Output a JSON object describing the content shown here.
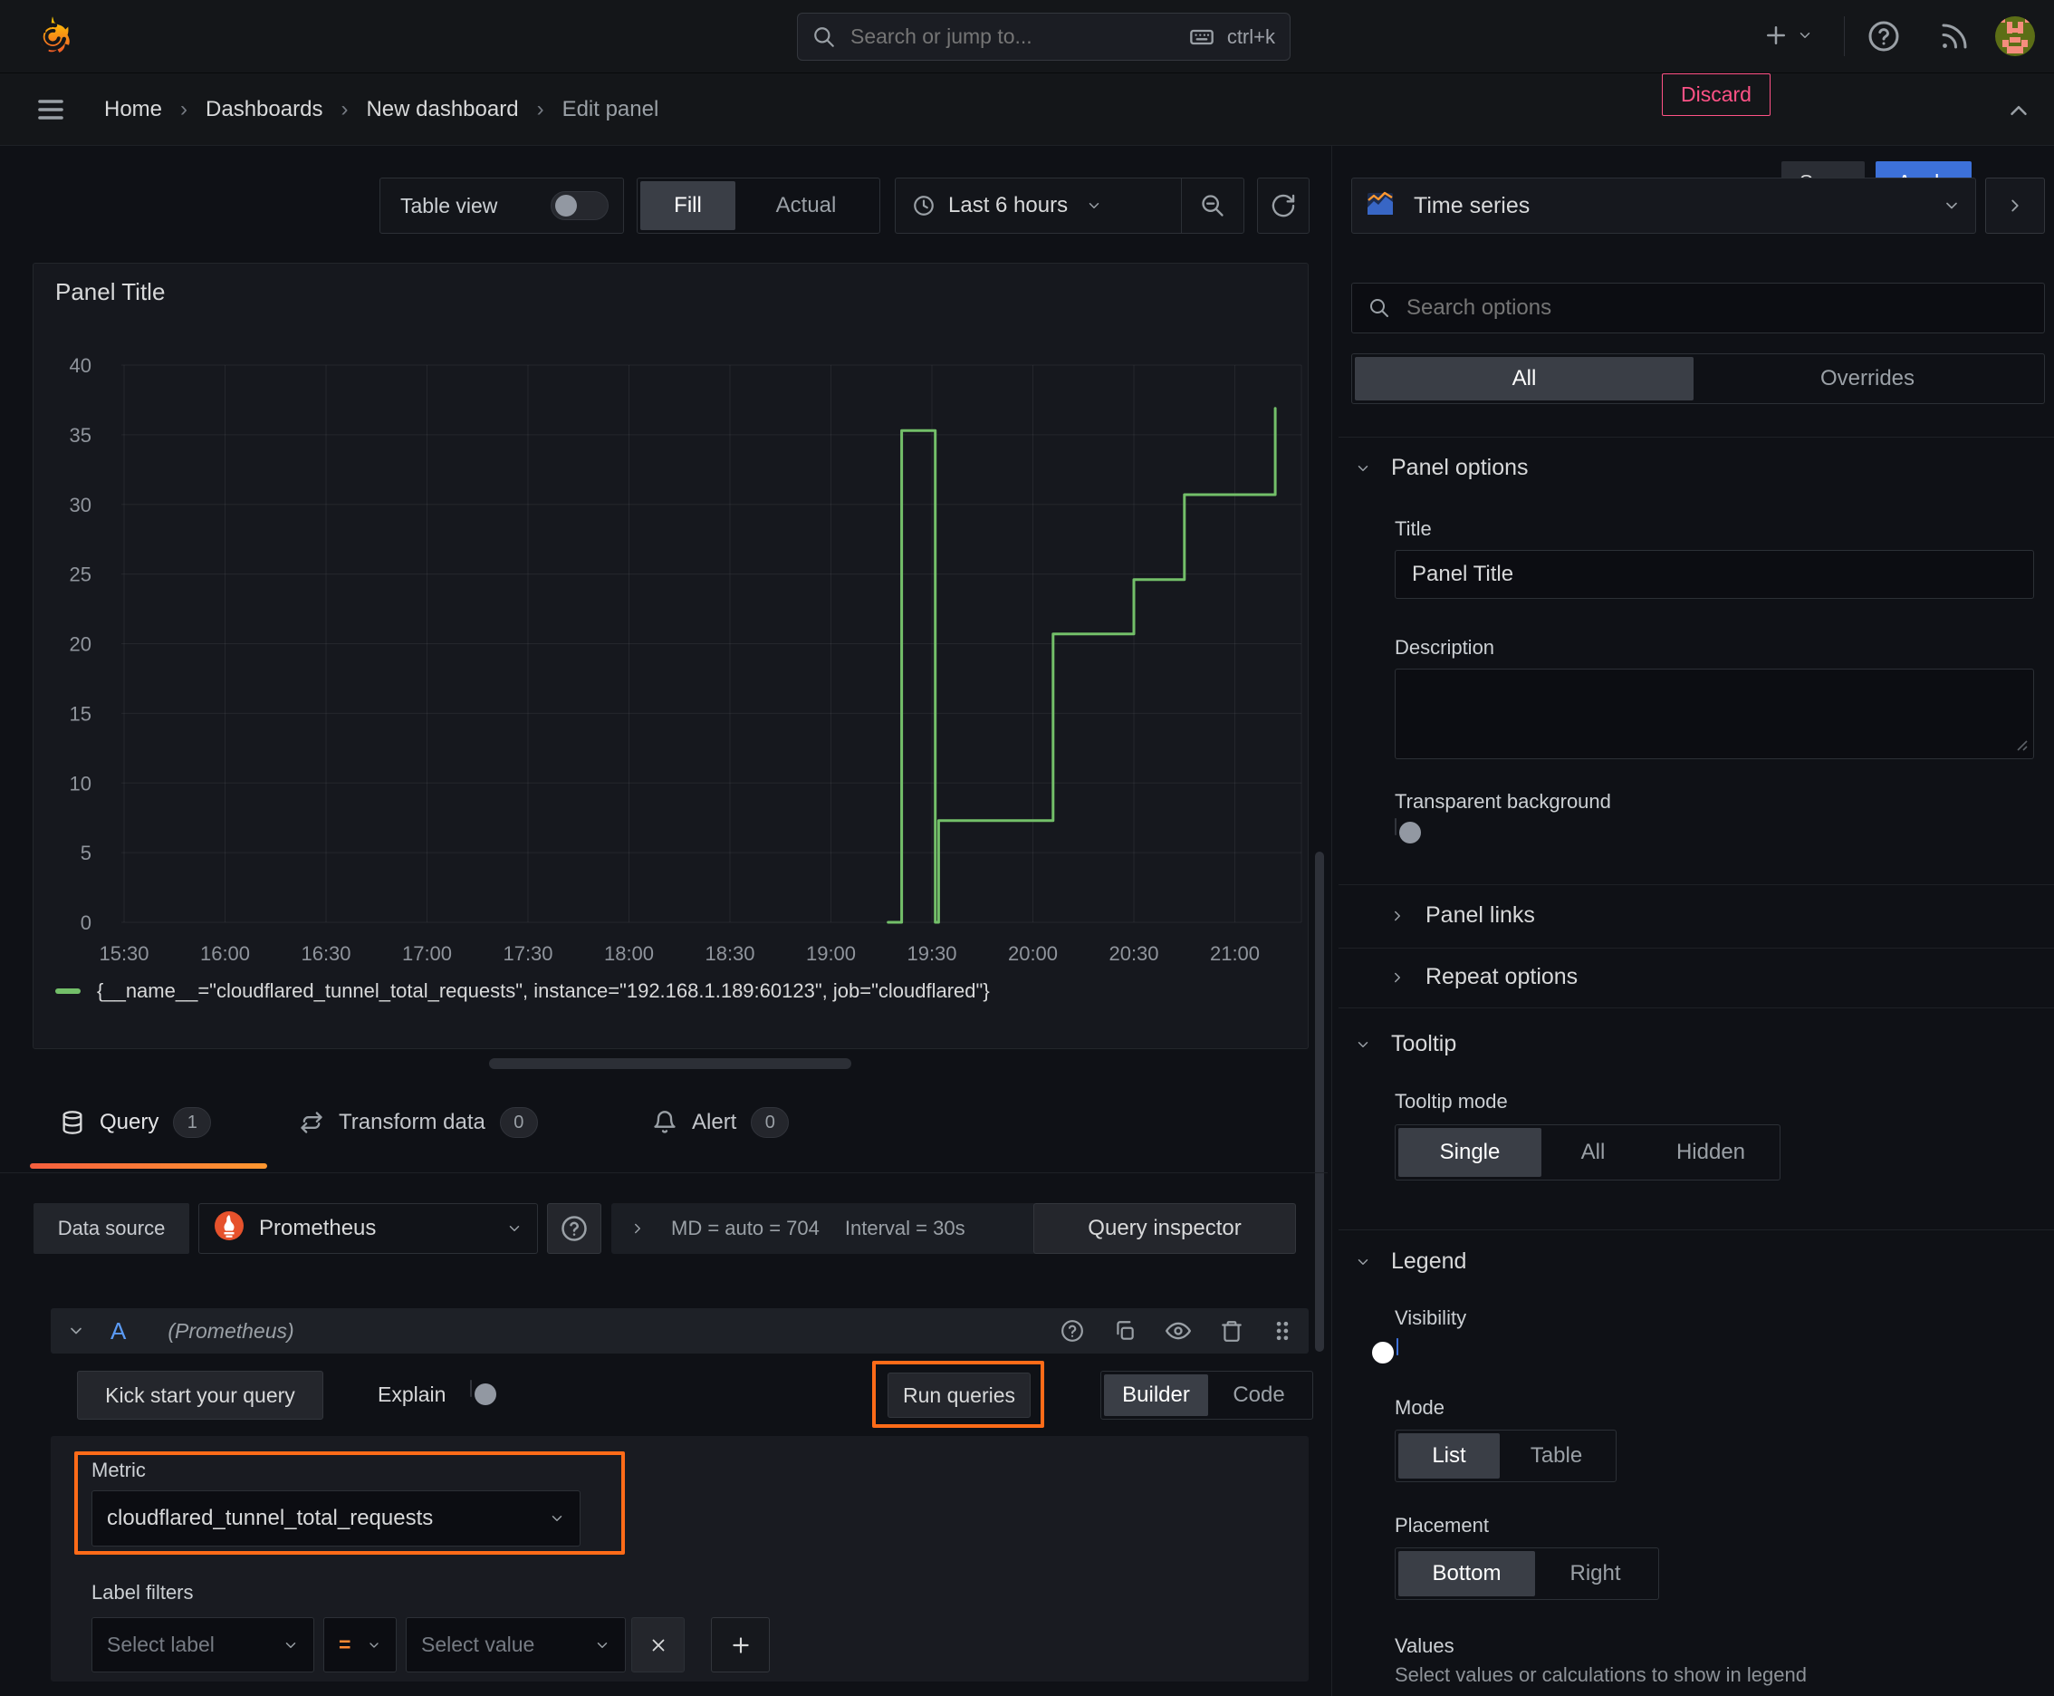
{
  "topbar": {
    "search_placeholder": "Search or jump to...",
    "search_shortcut": "ctrl+k"
  },
  "breadcrumb": {
    "separator": "›",
    "items": [
      "Home",
      "Dashboards",
      "New dashboard",
      "Edit panel"
    ]
  },
  "actions": {
    "discard": "Discard",
    "save": "Save",
    "apply": "Apply"
  },
  "viewbar": {
    "table_view": "Table view",
    "fill": "Fill",
    "actual": "Actual",
    "time_range": "Last 6 hours"
  },
  "panel": {
    "title": "Panel Title"
  },
  "chart_data": {
    "type": "line",
    "interpolation": "step-after",
    "title": "Panel Title",
    "grid": true,
    "legend_position": "bottom",
    "x_ticks": [
      "15:30",
      "16:00",
      "16:30",
      "17:00",
      "17:30",
      "18:00",
      "18:30",
      "19:00",
      "19:30",
      "20:00",
      "20:30",
      "21:00"
    ],
    "y_ticks": [
      0,
      5,
      10,
      15,
      20,
      25,
      30,
      35,
      40
    ],
    "ylim": [
      0,
      42.5
    ],
    "xlim": [
      "15:29",
      "21:20"
    ],
    "series": [
      {
        "name": "{__name__=\"cloudflared_tunnel_total_requests\", instance=\"192.168.1.189:60123\", job=\"cloudflared\"}",
        "color": "#73bf69",
        "points": [
          [
            "19:17",
            0
          ],
          [
            "19:21",
            35.3
          ],
          [
            "19:31",
            0
          ],
          [
            "19:32",
            7.3
          ],
          [
            "20:06",
            20.7
          ],
          [
            "20:30",
            24.6
          ],
          [
            "20:45",
            30.7
          ],
          [
            "21:12",
            36.9
          ]
        ]
      }
    ]
  },
  "query_tabs": [
    {
      "label": "Query",
      "badge": "1"
    },
    {
      "label": "Transform data",
      "badge": "0"
    },
    {
      "label": "Alert",
      "badge": "0"
    }
  ],
  "datasource": {
    "label": "Data source",
    "name": "Prometheus",
    "options_summary": "MD = auto = 704",
    "interval": "Interval = 30s",
    "inspector": "Query inspector"
  },
  "query": {
    "ref": "A",
    "hint": "(Prometheus)",
    "kickstart": "Kick start your query",
    "explain": "Explain",
    "run": "Run queries",
    "builder": "Builder",
    "code": "Code",
    "metric_label": "Metric",
    "metric_value": "cloudflared_tunnel_total_requests",
    "filters_label": "Label filters",
    "select_label": "Select label",
    "operator": "=",
    "select_value": "Select value"
  },
  "options": {
    "viz": "Time series",
    "search_placeholder": "Search options",
    "tab_all": "All",
    "tab_overrides": "Overrides",
    "panel_options": "Panel options",
    "title_label": "Title",
    "title_value": "Panel Title",
    "description_label": "Description",
    "transparent": "Transparent background",
    "panel_links": "Panel links",
    "repeat_options": "Repeat options",
    "tooltip": "Tooltip",
    "tooltip_mode": "Tooltip mode",
    "tooltip_single": "Single",
    "tooltip_all": "All",
    "tooltip_hidden": "Hidden",
    "legend": "Legend",
    "visibility": "Visibility",
    "mode": "Mode",
    "mode_list": "List",
    "mode_table": "Table",
    "placement": "Placement",
    "placement_bottom": "Bottom",
    "placement_right": "Right",
    "values": "Values",
    "values_hint": "Select values or calculations to show in legend"
  },
  "colors": {
    "accent_orange": "#ff6b18",
    "series_green": "#73bf69",
    "primary_blue": "#3d71d9",
    "discard_red": "#ff5286",
    "ref_blue": "#5b9bf5"
  }
}
